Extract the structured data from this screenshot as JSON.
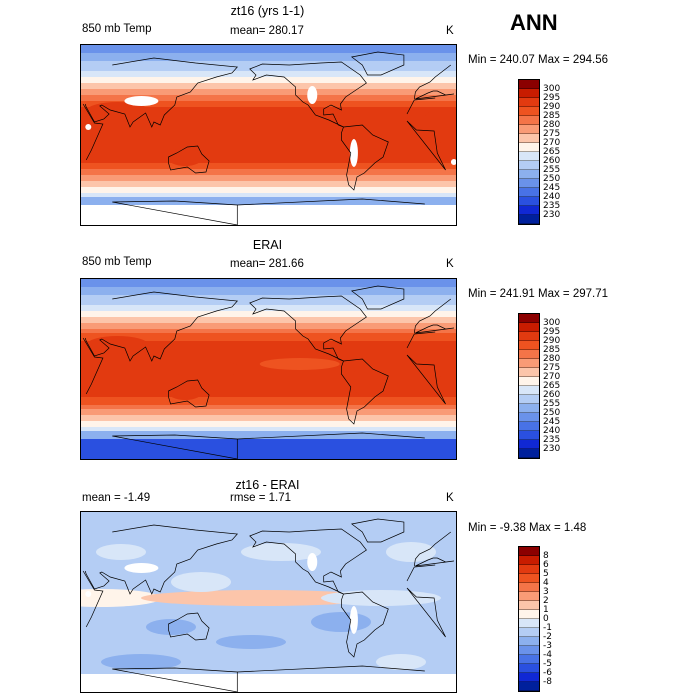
{
  "season_label": "ANN",
  "panels": [
    {
      "title": "zt16 (yrs 1-1)",
      "variable": "850 mb Temp",
      "stat1": "mean= 280.17",
      "stat2": "",
      "units": "K",
      "minmax": "Min = 240.07 Max = 294.56",
      "kind": "abs"
    },
    {
      "title": "ERAI",
      "variable": "850 mb Temp",
      "stat1": "mean= 281.66",
      "stat2": "",
      "units": "K",
      "minmax": "Min = 241.91 Max = 297.71",
      "kind": "abs"
    },
    {
      "title": "zt16 - ERAI",
      "variable": "mean = -1.49",
      "stat1": "rmse = 1.71",
      "stat2": "",
      "units": "K",
      "minmax": "Min = -9.38 Max = 1.48",
      "kind": "diff"
    }
  ],
  "colorbars": {
    "abs_levels": [
      "300",
      "295",
      "290",
      "285",
      "280",
      "275",
      "270",
      "265",
      "260",
      "255",
      "250",
      "245",
      "240",
      "235",
      "230"
    ],
    "abs_colors": [
      "#8b0000",
      "#c81c00",
      "#e23a10",
      "#ee5320",
      "#f47448",
      "#f99b76",
      "#fcc5aa",
      "#fff4ea",
      "#d8e6f8",
      "#b4cdf4",
      "#8cb0ee",
      "#6a92ea",
      "#4872e6",
      "#2a50e0",
      "#1028d4",
      "#00209c"
    ],
    "diff_levels": [
      "8",
      "6",
      "5",
      "4",
      "3",
      "2",
      "1",
      "0",
      "-1",
      "-2",
      "-3",
      "-4",
      "-5",
      "-6",
      "-8"
    ],
    "diff_colors": [
      "#8b0000",
      "#c81c00",
      "#e23a10",
      "#ee5320",
      "#f47448",
      "#f99b76",
      "#fcc5aa",
      "#fff4ea",
      "#d8e6f8",
      "#b4cdf4",
      "#8cb0ee",
      "#6a92ea",
      "#4872e6",
      "#2a50e0",
      "#1028d4",
      "#00209c"
    ]
  },
  "chart_data": [
    {
      "type": "heatmap",
      "title": "zt16 (yrs 1-1)",
      "variable": "850 mb Temp",
      "units": "K",
      "mean": 280.17,
      "min": 240.07,
      "max": 294.56,
      "contour_levels": [
        230,
        235,
        240,
        245,
        250,
        255,
        260,
        265,
        270,
        275,
        280,
        285,
        290,
        295,
        300
      ],
      "projection": "cylindrical equidistant, Pacific-centered",
      "x_range_lon": [
        30,
        390
      ],
      "y_range_lat": [
        -90,
        90
      ]
    },
    {
      "type": "heatmap",
      "title": "ERAI",
      "variable": "850 mb Temp",
      "units": "K",
      "mean": 281.66,
      "min": 241.91,
      "max": 297.71,
      "contour_levels": [
        230,
        235,
        240,
        245,
        250,
        255,
        260,
        265,
        270,
        275,
        280,
        285,
        290,
        295,
        300
      ],
      "projection": "cylindrical equidistant, Pacific-centered",
      "x_range_lon": [
        30,
        390
      ],
      "y_range_lat": [
        -90,
        90
      ]
    },
    {
      "type": "heatmap",
      "title": "zt16 - ERAI",
      "units": "K",
      "mean": -1.49,
      "rmse": 1.71,
      "min": -9.38,
      "max": 1.48,
      "contour_levels": [
        -8,
        -6,
        -5,
        -4,
        -3,
        -2,
        -1,
        0,
        1,
        2,
        3,
        4,
        5,
        6,
        8
      ],
      "projection": "cylindrical equidistant, Pacific-centered",
      "x_range_lon": [
        30,
        390
      ],
      "y_range_lat": [
        -90,
        90
      ]
    }
  ]
}
